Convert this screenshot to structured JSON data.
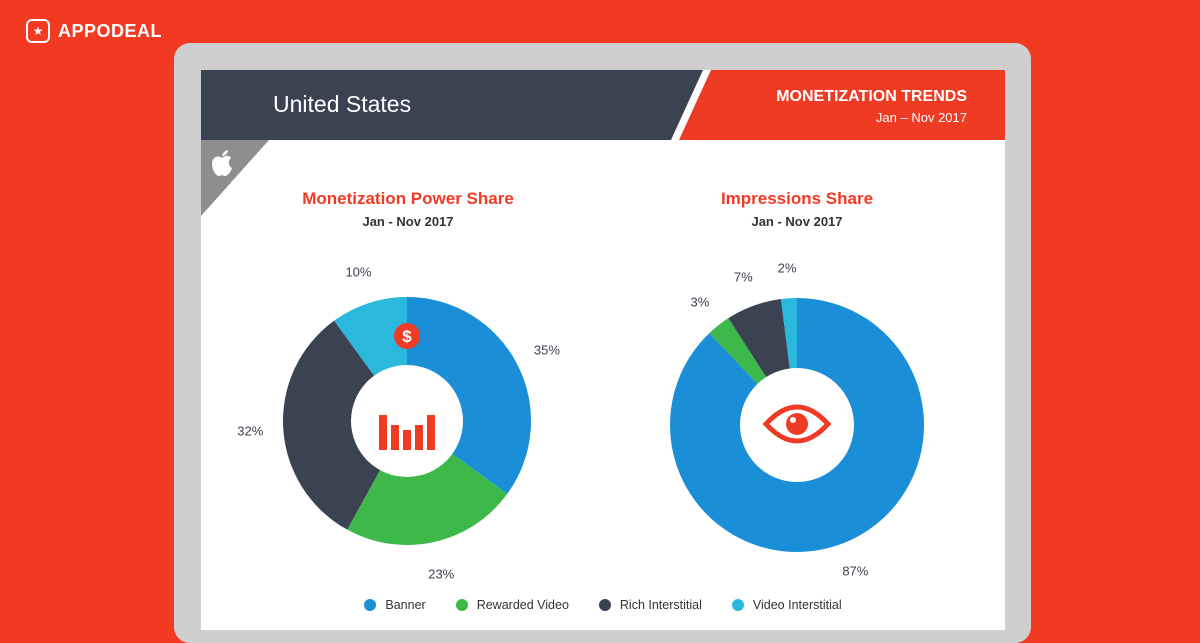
{
  "brand": {
    "name": "APPODEAL",
    "logo_icon": "star-badge-icon"
  },
  "header": {
    "country": "United States",
    "trends_title": "MONETIZATION TRENDS",
    "trends_period": "Jan – Nov 2017",
    "platform_icon": "apple-icon"
  },
  "colors": {
    "Banner": "#1a8fd8",
    "Rewarded Video": "#3db94a",
    "Rich Interstitial": "#3b4252",
    "Video Interstitial": "#2ab8dc"
  },
  "legend": [
    "Banner",
    "Rewarded Video",
    "Rich Interstitial",
    "Video Interstitial"
  ],
  "chart_data": [
    {
      "type": "pie",
      "title": "Monetization Power Share",
      "subtitle": "Jan - Nov 2017",
      "center_icon": "dollar-bars-icon",
      "slices": [
        {
          "label": "Banner",
          "value": 35,
          "text": "35%"
        },
        {
          "label": "Rewarded Video",
          "value": 23,
          "text": "23%"
        },
        {
          "label": "Rich Interstitial",
          "value": 32,
          "text": "32%"
        },
        {
          "label": "Video Interstitial",
          "value": 10,
          "text": "10%"
        }
      ]
    },
    {
      "type": "pie",
      "title": "Impressions Share",
      "subtitle": "Jan - Nov 2017",
      "center_icon": "eye-icon",
      "slices": [
        {
          "label": "Banner",
          "value": 87,
          "text": "87%"
        },
        {
          "label": "Rewarded Video",
          "value": 3,
          "text": "3%"
        },
        {
          "label": "Rich Interstitial",
          "value": 7,
          "text": "7%"
        },
        {
          "label": "Video Interstitial",
          "value": 2,
          "text": "2%"
        }
      ]
    }
  ]
}
